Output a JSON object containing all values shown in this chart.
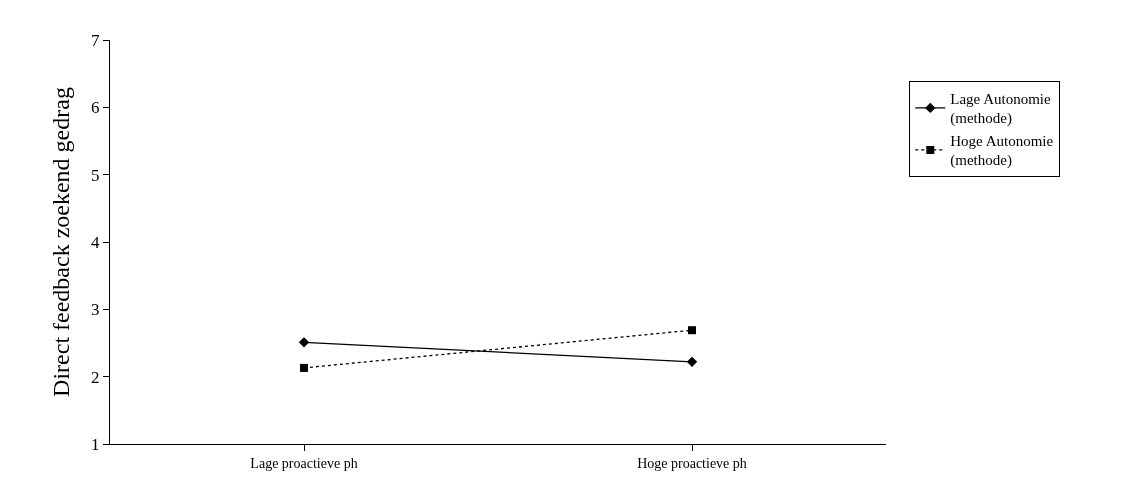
{
  "chart_data": {
    "type": "line",
    "ylabel": "Direct feedback zoekend gedrag",
    "categories": [
      "Lage proactieve ph",
      "Hoge proactieve ph"
    ],
    "series": [
      {
        "name": "Lage Autonomie (methode)",
        "color": "#000000",
        "values": [
          2.51,
          2.22
        ],
        "marker": "diamond",
        "line_style": "solid"
      },
      {
        "name": "Hoge Autonomie (methode)",
        "color": "#000000",
        "values": [
          2.13,
          2.69
        ],
        "marker": "square",
        "line_style": "dotted"
      }
    ],
    "ylim": [
      1,
      7
    ],
    "yticks": [
      1,
      2,
      3,
      4,
      5,
      6,
      7
    ],
    "legend": "right"
  }
}
